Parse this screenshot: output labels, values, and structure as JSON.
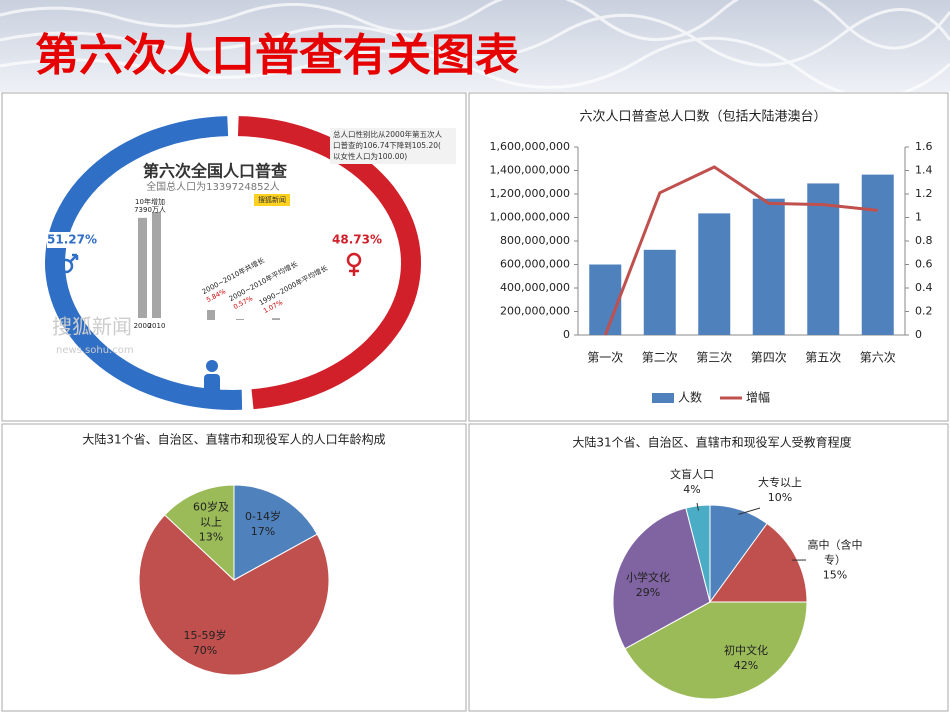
{
  "header": {
    "title": "第六次人口普查有关图表"
  },
  "chart_data": [
    {
      "type": "donut",
      "title": "第六次全国人口普查",
      "subtitle": "全国总人口为1339724852人",
      "annotation": [
        "总人口性别比从2000年第五次人",
        "口普查的106.74下降到105.20(",
        "以女性人口为100.00)"
      ],
      "values": [
        51.27,
        48.73
      ],
      "value_labels": [
        "51.27%",
        "48.73%"
      ],
      "colors": [
        "#2f6fc6",
        "#d1202a"
      ],
      "bars": {
        "categories": [
          "2000",
          "2010"
        ],
        "values": [
          1265825048,
          1339724852
        ],
        "label": [
          "10年增加",
          "7390万人"
        ],
        "color": "#a6a6a6"
      },
      "growth": {
        "categories": [
          "2000~2010年共增长",
          "2000~2010年平均增长",
          "1990~2000年平均增长"
        ],
        "values": [
          5.84,
          0.57,
          1.07
        ],
        "value_labels": [
          "5.84%",
          "0.57%",
          "1.07%"
        ],
        "color": "#a6a6a6"
      },
      "logo": "搜狐新闻",
      "watermark": [
        "搜狐新闻",
        "news.sohu.com"
      ]
    },
    {
      "type": "combo",
      "title": "六次人口普查总人口数（包括大陆港澳台）",
      "categories": [
        "第一次",
        "第二次",
        "第三次",
        "第四次",
        "第五次",
        "第六次"
      ],
      "series": [
        {
          "name": "人数",
          "type": "bar",
          "color": "#4f81bd",
          "values": [
            600000000,
            725000000,
            1035000000,
            1160000000,
            1290000000,
            1365000000
          ]
        },
        {
          "name": "增幅",
          "type": "line",
          "axis": "y2",
          "color": "#c0504d",
          "values": [
            0,
            1.21,
            1.43,
            1.12,
            1.11,
            1.06
          ]
        }
      ],
      "ylim": [
        0,
        1600000000
      ],
      "yticks": [
        0,
        {
          "value": 200000000,
          "label": "200,000,000"
        },
        {
          "value": 400000000,
          "label": "400,000,000"
        },
        {
          "value": 600000000,
          "label": "600,000,000"
        },
        {
          "value": 800000000,
          "label": "800,000,000"
        },
        {
          "value": 1000000000,
          "label": "1,000,000,000"
        },
        {
          "value": 1200000000,
          "label": "1,200,000,000"
        },
        {
          "value": 1400000000,
          "label": "1,400,000,000"
        },
        {
          "value": 1600000000,
          "label": "1,600,000,000"
        }
      ],
      "y2lim": [
        0,
        1.6
      ],
      "y2ticks": [
        0,
        0.2,
        0.4,
        0.6,
        0.8,
        1,
        1.2,
        1.4,
        1.6
      ],
      "grid": false,
      "legend": "bottom"
    },
    {
      "type": "pie",
      "title": "大陆31个省、自治区、直辖市和现役军人的人口年龄构成",
      "categories": [
        "0-14岁",
        "15-59岁",
        "60岁及以上"
      ],
      "values": [
        17,
        70,
        13
      ],
      "value_labels": [
        "17%",
        "70%",
        "13%"
      ],
      "colors": [
        "#4f81bd",
        "#c0504d",
        "#9bbb59"
      ]
    },
    {
      "type": "pie",
      "title": "大陆31个省、自治区、直辖市和现役军人受教育程度",
      "categories": [
        "大专以上",
        "高中（含中专）",
        "初中文化",
        "小学文化",
        "文盲人口"
      ],
      "values": [
        10,
        15,
        42,
        29,
        4
      ],
      "value_labels": [
        "10%",
        "15%",
        "42%",
        "29%",
        "4%"
      ],
      "colors": [
        "#4f81bd",
        "#c0504d",
        "#9bbb59",
        "#8064a2",
        "#4bacc6"
      ]
    }
  ]
}
